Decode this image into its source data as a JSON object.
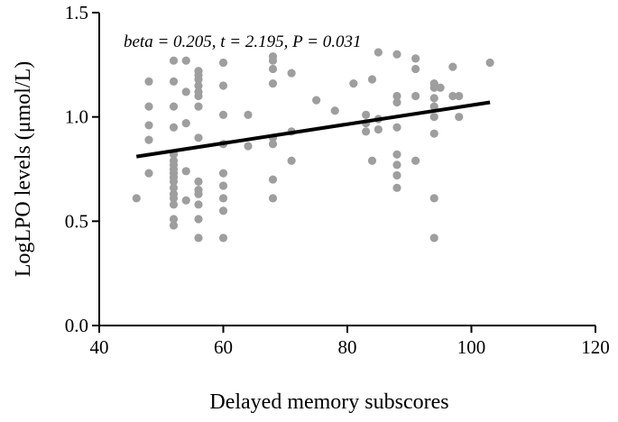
{
  "chart_data": {
    "type": "scatter",
    "xlabel": "Delayed memory subscores",
    "ylabel": "LogLPO levels (μmol/L)",
    "annotation": "beta = 0.205, t = 2.195, P = 0.031",
    "xlim": [
      40,
      120
    ],
    "ylim": [
      0.0,
      1.5
    ],
    "x_ticks": [
      40,
      60,
      80,
      100,
      120
    ],
    "y_ticks": [
      0.0,
      0.5,
      1.0,
      1.5
    ],
    "x_tick_labels": [
      "40",
      "60",
      "80",
      "100",
      "120"
    ],
    "y_tick_labels": [
      "0.0",
      "0.5",
      "1.0",
      "1.5"
    ],
    "grid": false,
    "point_color": "#9e9e9e",
    "line_color": "#000000",
    "regression_line": {
      "x": [
        46,
        103
      ],
      "y": [
        0.81,
        1.07
      ]
    },
    "points": [
      {
        "x": 46,
        "y": 0.61
      },
      {
        "x": 48,
        "y": 1.17
      },
      {
        "x": 48,
        "y": 1.05
      },
      {
        "x": 48,
        "y": 0.96
      },
      {
        "x": 48,
        "y": 0.89
      },
      {
        "x": 48,
        "y": 0.73
      },
      {
        "x": 52,
        "y": 1.27
      },
      {
        "x": 52,
        "y": 1.17
      },
      {
        "x": 52,
        "y": 1.05
      },
      {
        "x": 52,
        "y": 0.95
      },
      {
        "x": 52,
        "y": 0.82
      },
      {
        "x": 52,
        "y": 0.79
      },
      {
        "x": 52,
        "y": 0.77
      },
      {
        "x": 52,
        "y": 0.75
      },
      {
        "x": 52,
        "y": 0.73
      },
      {
        "x": 52,
        "y": 0.71
      },
      {
        "x": 52,
        "y": 0.69
      },
      {
        "x": 52,
        "y": 0.66
      },
      {
        "x": 52,
        "y": 0.63
      },
      {
        "x": 52,
        "y": 0.61
      },
      {
        "x": 52,
        "y": 0.58
      },
      {
        "x": 52,
        "y": 0.51
      },
      {
        "x": 52,
        "y": 0.48
      },
      {
        "x": 54,
        "y": 1.27
      },
      {
        "x": 54,
        "y": 1.12
      },
      {
        "x": 54,
        "y": 0.97
      },
      {
        "x": 54,
        "y": 0.74
      },
      {
        "x": 54,
        "y": 0.6
      },
      {
        "x": 56,
        "y": 1.22
      },
      {
        "x": 56,
        "y": 1.2
      },
      {
        "x": 56,
        "y": 1.18
      },
      {
        "x": 56,
        "y": 1.15
      },
      {
        "x": 56,
        "y": 1.12
      },
      {
        "x": 56,
        "y": 1.1
      },
      {
        "x": 56,
        "y": 1.05
      },
      {
        "x": 56,
        "y": 0.9
      },
      {
        "x": 56,
        "y": 0.69
      },
      {
        "x": 56,
        "y": 0.65
      },
      {
        "x": 56,
        "y": 0.63
      },
      {
        "x": 56,
        "y": 0.58
      },
      {
        "x": 56,
        "y": 0.51
      },
      {
        "x": 56,
        "y": 0.42
      },
      {
        "x": 60,
        "y": 1.26
      },
      {
        "x": 60,
        "y": 1.15
      },
      {
        "x": 60,
        "y": 1.01
      },
      {
        "x": 60,
        "y": 0.87
      },
      {
        "x": 60,
        "y": 0.73
      },
      {
        "x": 60,
        "y": 0.67
      },
      {
        "x": 60,
        "y": 0.61
      },
      {
        "x": 60,
        "y": 0.55
      },
      {
        "x": 60,
        "y": 0.42
      },
      {
        "x": 64,
        "y": 1.01
      },
      {
        "x": 64,
        "y": 0.86
      },
      {
        "x": 68,
        "y": 1.29
      },
      {
        "x": 68,
        "y": 1.27
      },
      {
        "x": 68,
        "y": 1.23
      },
      {
        "x": 68,
        "y": 1.16
      },
      {
        "x": 68,
        "y": 0.9
      },
      {
        "x": 68,
        "y": 0.87
      },
      {
        "x": 68,
        "y": 0.7
      },
      {
        "x": 68,
        "y": 0.61
      },
      {
        "x": 71,
        "y": 1.21
      },
      {
        "x": 71,
        "y": 0.93
      },
      {
        "x": 71,
        "y": 0.79
      },
      {
        "x": 75,
        "y": 1.08
      },
      {
        "x": 78,
        "y": 1.03
      },
      {
        "x": 81,
        "y": 1.16
      },
      {
        "x": 83,
        "y": 1.01
      },
      {
        "x": 83,
        "y": 0.97
      },
      {
        "x": 83,
        "y": 0.93
      },
      {
        "x": 84,
        "y": 1.18
      },
      {
        "x": 84,
        "y": 0.79
      },
      {
        "x": 85,
        "y": 1.31
      },
      {
        "x": 85,
        "y": 0.99
      },
      {
        "x": 85,
        "y": 0.94
      },
      {
        "x": 88,
        "y": 1.3
      },
      {
        "x": 88,
        "y": 1.1
      },
      {
        "x": 88,
        "y": 1.07
      },
      {
        "x": 88,
        "y": 0.95
      },
      {
        "x": 88,
        "y": 0.82
      },
      {
        "x": 88,
        "y": 0.77
      },
      {
        "x": 88,
        "y": 0.72
      },
      {
        "x": 88,
        "y": 0.66
      },
      {
        "x": 91,
        "y": 1.28
      },
      {
        "x": 91,
        "y": 1.23
      },
      {
        "x": 91,
        "y": 1.1
      },
      {
        "x": 91,
        "y": 0.79
      },
      {
        "x": 94,
        "y": 1.16
      },
      {
        "x": 94,
        "y": 1.14
      },
      {
        "x": 94,
        "y": 1.09
      },
      {
        "x": 94,
        "y": 1.05
      },
      {
        "x": 94,
        "y": 1.0
      },
      {
        "x": 94,
        "y": 0.92
      },
      {
        "x": 94,
        "y": 0.61
      },
      {
        "x": 94,
        "y": 0.42
      },
      {
        "x": 95,
        "y": 1.14
      },
      {
        "x": 97,
        "y": 1.24
      },
      {
        "x": 97,
        "y": 1.1
      },
      {
        "x": 98,
        "y": 1.1
      },
      {
        "x": 98,
        "y": 1.0
      },
      {
        "x": 103,
        "y": 1.26
      }
    ]
  }
}
